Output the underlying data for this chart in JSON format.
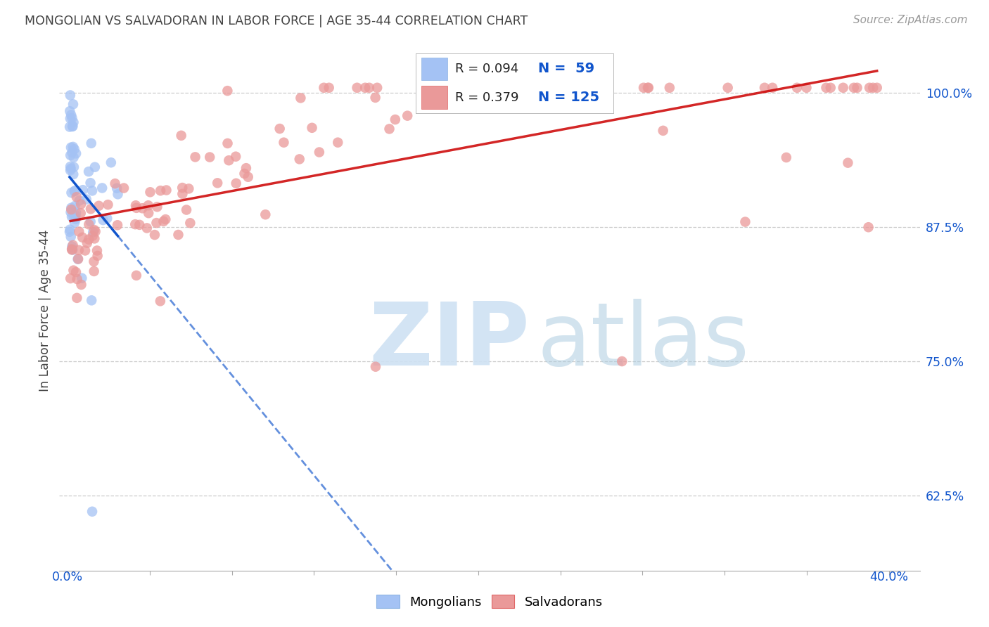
{
  "title": "MONGOLIAN VS SALVADORAN IN LABOR FORCE | AGE 35-44 CORRELATION CHART",
  "source": "Source: ZipAtlas.com",
  "ylabel": "In Labor Force | Age 35-44",
  "xtick_left_label": "0.0%",
  "xtick_right_label": "40.0%",
  "ytick_labels": [
    "100.0%",
    "87.5%",
    "75.0%",
    "62.5%"
  ],
  "ytick_values": [
    1.0,
    0.875,
    0.75,
    0.625
  ],
  "legend_mongolian": "Mongolians",
  "legend_salvadoran": "Salvadorans",
  "r_mongolian": 0.094,
  "n_mongolian": 59,
  "r_salvadoran": 0.379,
  "n_salvadoran": 125,
  "xlim": [
    -0.004,
    0.415
  ],
  "ylim": [
    0.555,
    1.04
  ],
  "blue_scatter_color": "#a4c2f4",
  "blue_line_color": "#1155cc",
  "pink_scatter_color": "#ea9999",
  "pink_line_color": "#cc0000",
  "legend_n_color": "#1155cc",
  "background_color": "#ffffff",
  "grid_color": "#cccccc",
  "title_color": "#434343",
  "source_color": "#999999",
  "ylabel_color": "#434343",
  "yticklabel_color": "#1155cc",
  "xticklabel_color": "#1155cc",
  "seed": 42
}
